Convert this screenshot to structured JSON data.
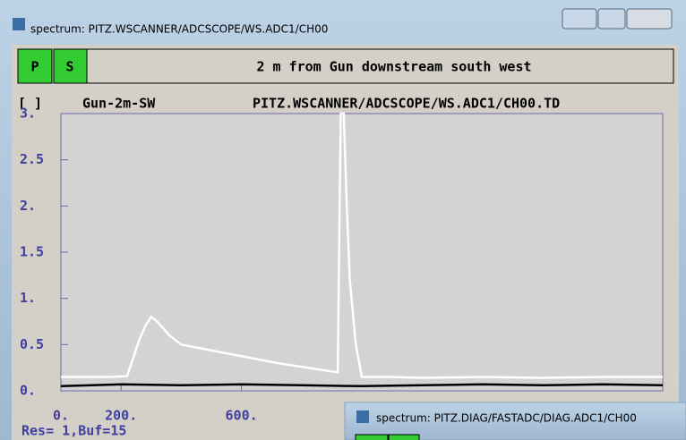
{
  "window": {
    "title": "spectrum: PITZ.WSCANNER/ADCSCOPE/WS.ADC1/CH00"
  },
  "buttons": [
    "P",
    "S"
  ],
  "header": {
    "description": "2 m from Gun downstream south west",
    "bracket": "[ ]",
    "name": "Gun-2m-SW",
    "address": "PITZ.WSCANNER/ADCSCOPE/WS.ADC1/CH00.TD"
  },
  "chart_data": {
    "type": "line",
    "xlim": [
      0,
      2000
    ],
    "ylim": [
      0,
      3
    ],
    "xticks": [
      {
        "value": 0,
        "label": "0."
      },
      {
        "value": 200,
        "label": "200."
      },
      {
        "value": 600,
        "label": "600."
      }
    ],
    "yticks": [
      {
        "value": 0,
        "label": "0."
      },
      0.5,
      {
        "value": 1,
        "label": "1."
      },
      1.5,
      {
        "value": 2,
        "label": "2."
      },
      2.5,
      {
        "value": 3,
        "label": "3."
      }
    ],
    "series": [
      {
        "color": "#ffffff",
        "x": [
          0,
          80,
          160,
          220,
          240,
          260,
          280,
          300,
          320,
          360,
          400,
          480,
          560,
          640,
          720,
          800,
          880,
          920,
          930,
          940,
          950,
          960,
          980,
          1000,
          1100,
          1200,
          1400,
          1600,
          1800,
          2000
        ],
        "values": [
          0.15,
          0.15,
          0.15,
          0.16,
          0.35,
          0.55,
          0.7,
          0.8,
          0.75,
          0.6,
          0.5,
          0.45,
          0.4,
          0.35,
          0.3,
          0.26,
          0.22,
          0.2,
          3.0,
          3.0,
          2.0,
          1.2,
          0.5,
          0.15,
          0.15,
          0.14,
          0.15,
          0.14,
          0.15,
          0.15
        ]
      },
      {
        "color": "#000000",
        "x": [
          0,
          200,
          400,
          600,
          800,
          1000,
          1200,
          1400,
          1600,
          1800,
          2000
        ],
        "values": [
          0.05,
          0.07,
          0.06,
          0.07,
          0.06,
          0.05,
          0.06,
          0.07,
          0.06,
          0.07,
          0.06
        ]
      }
    ]
  },
  "status": "Res= 1,Buf=15",
  "overlay_window": {
    "title": "spectrum: PITZ.DIAG/FASTADC/DIAG.ADC1/CH00"
  }
}
